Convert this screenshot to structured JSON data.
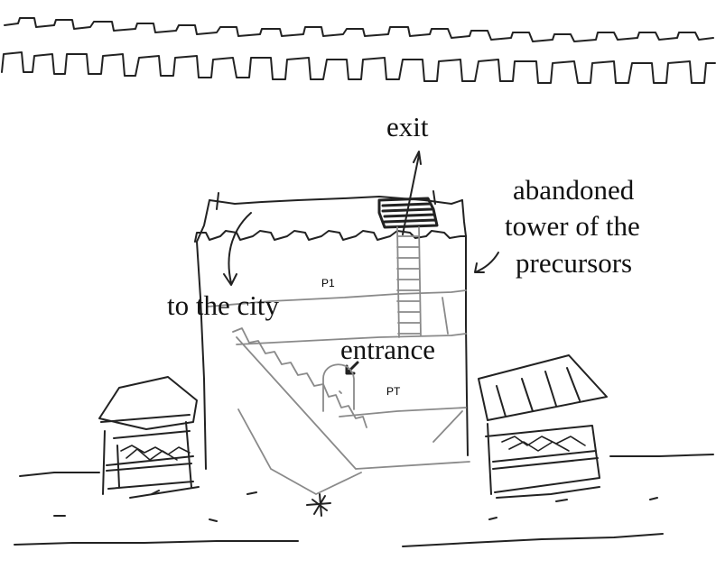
{
  "labels": {
    "exit": "exit",
    "tower_line1": "abandoned",
    "tower_line2": "tower of the",
    "tower_line3": "precursors",
    "to_city": "to the city",
    "entrance": "entrance",
    "floor_upper": "P1",
    "floor_ground": "PT"
  },
  "colors": {
    "ink": "#222222",
    "grey_ink": "#8a8a8a",
    "background": "#ffffff"
  }
}
